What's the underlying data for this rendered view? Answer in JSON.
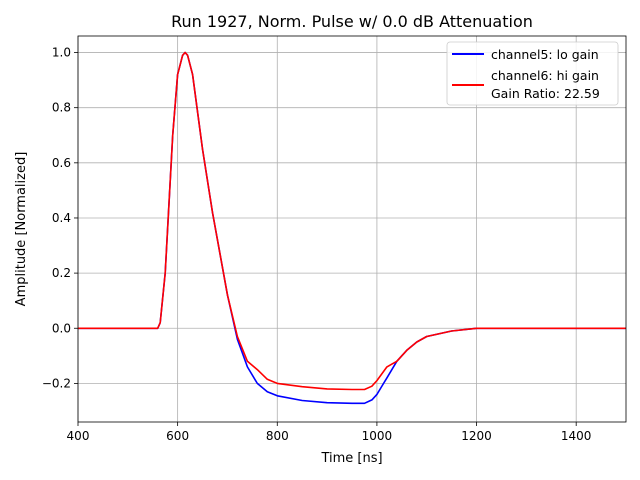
{
  "chart_data": {
    "type": "line",
    "title": "Run 1927, Norm. Pulse w/ 0.0 dB Attenuation",
    "xlabel": "Time [ns]",
    "ylabel": "Amplitude [Normalized]",
    "xlim": [
      400,
      1500
    ],
    "ylim": [
      -0.34,
      1.06
    ],
    "xticks": [
      400,
      600,
      800,
      1000,
      1200,
      1400
    ],
    "xtick_labels": [
      "400",
      "600",
      "800",
      "1000",
      "1200",
      "1400"
    ],
    "yticks": [
      -0.2,
      0.0,
      0.2,
      0.4,
      0.6,
      0.8,
      1.0
    ],
    "ytick_labels": [
      "−0.2",
      "0.0",
      "0.2",
      "0.4",
      "0.6",
      "0.8",
      "1.0"
    ],
    "grid": true,
    "legend_position": "top-right",
    "legend_extra": "Gain Ratio: 22.59",
    "series": [
      {
        "name": "channel5: lo gain",
        "color": "#0000ff",
        "x": [
          400,
          500,
          560,
          565,
          575,
          590,
          600,
          610,
          615,
          620,
          630,
          650,
          670,
          700,
          720,
          740,
          760,
          780,
          800,
          850,
          900,
          950,
          975,
          990,
          1000,
          1020,
          1040,
          1060,
          1080,
          1100,
          1150,
          1200,
          1300,
          1400,
          1500
        ],
        "y": [
          0.0,
          0.0,
          0.0,
          0.02,
          0.2,
          0.7,
          0.92,
          0.99,
          1.0,
          0.99,
          0.92,
          0.65,
          0.42,
          0.12,
          -0.04,
          -0.14,
          -0.2,
          -0.23,
          -0.245,
          -0.262,
          -0.27,
          -0.272,
          -0.272,
          -0.26,
          -0.24,
          -0.18,
          -0.12,
          -0.08,
          -0.05,
          -0.03,
          -0.01,
          0.0,
          0.0,
          0.0,
          0.0
        ]
      },
      {
        "name": "channel6: hi gain",
        "color": "#ff0000",
        "x": [
          400,
          500,
          560,
          565,
          575,
          590,
          600,
          610,
          615,
          620,
          630,
          650,
          670,
          700,
          720,
          740,
          760,
          780,
          800,
          850,
          900,
          950,
          975,
          990,
          1000,
          1020,
          1030,
          1040,
          1060,
          1080,
          1100,
          1150,
          1200,
          1300,
          1400,
          1500
        ],
        "y": [
          0.0,
          0.0,
          0.0,
          0.02,
          0.2,
          0.7,
          0.92,
          0.99,
          1.0,
          0.99,
          0.92,
          0.65,
          0.42,
          0.12,
          -0.03,
          -0.12,
          -0.15,
          -0.185,
          -0.2,
          -0.212,
          -0.22,
          -0.222,
          -0.222,
          -0.21,
          -0.19,
          -0.14,
          -0.13,
          -0.12,
          -0.08,
          -0.05,
          -0.03,
          -0.01,
          0.0,
          0.0,
          0.0,
          0.0
        ]
      }
    ]
  }
}
